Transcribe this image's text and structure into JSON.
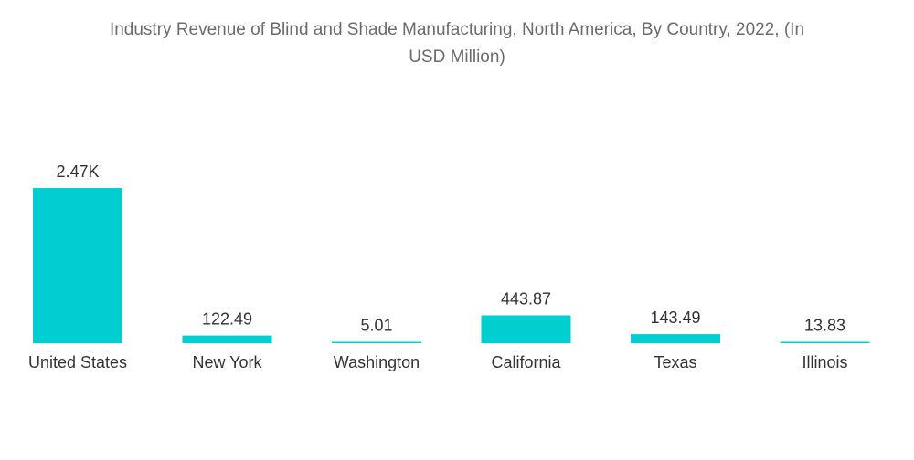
{
  "chart_data": {
    "type": "bar",
    "title_lines": [
      "Industry Revenue of Blind and Shade Manufacturing, North America, By Country, 2022, (In",
      "USD Million)"
    ],
    "categories": [
      "United States",
      "New York",
      "Washington",
      "California",
      "Texas",
      "Illinois"
    ],
    "values": [
      2470,
      122.49,
      5.01,
      443.87,
      143.49,
      13.83
    ],
    "value_labels": [
      "2.47K",
      "122.49",
      "5.01",
      "443.87",
      "143.49",
      "13.83"
    ],
    "xlabel": "",
    "ylabel": "",
    "ylim": [
      0,
      2470
    ],
    "bar_color": "#00ced1",
    "grid": false
  }
}
